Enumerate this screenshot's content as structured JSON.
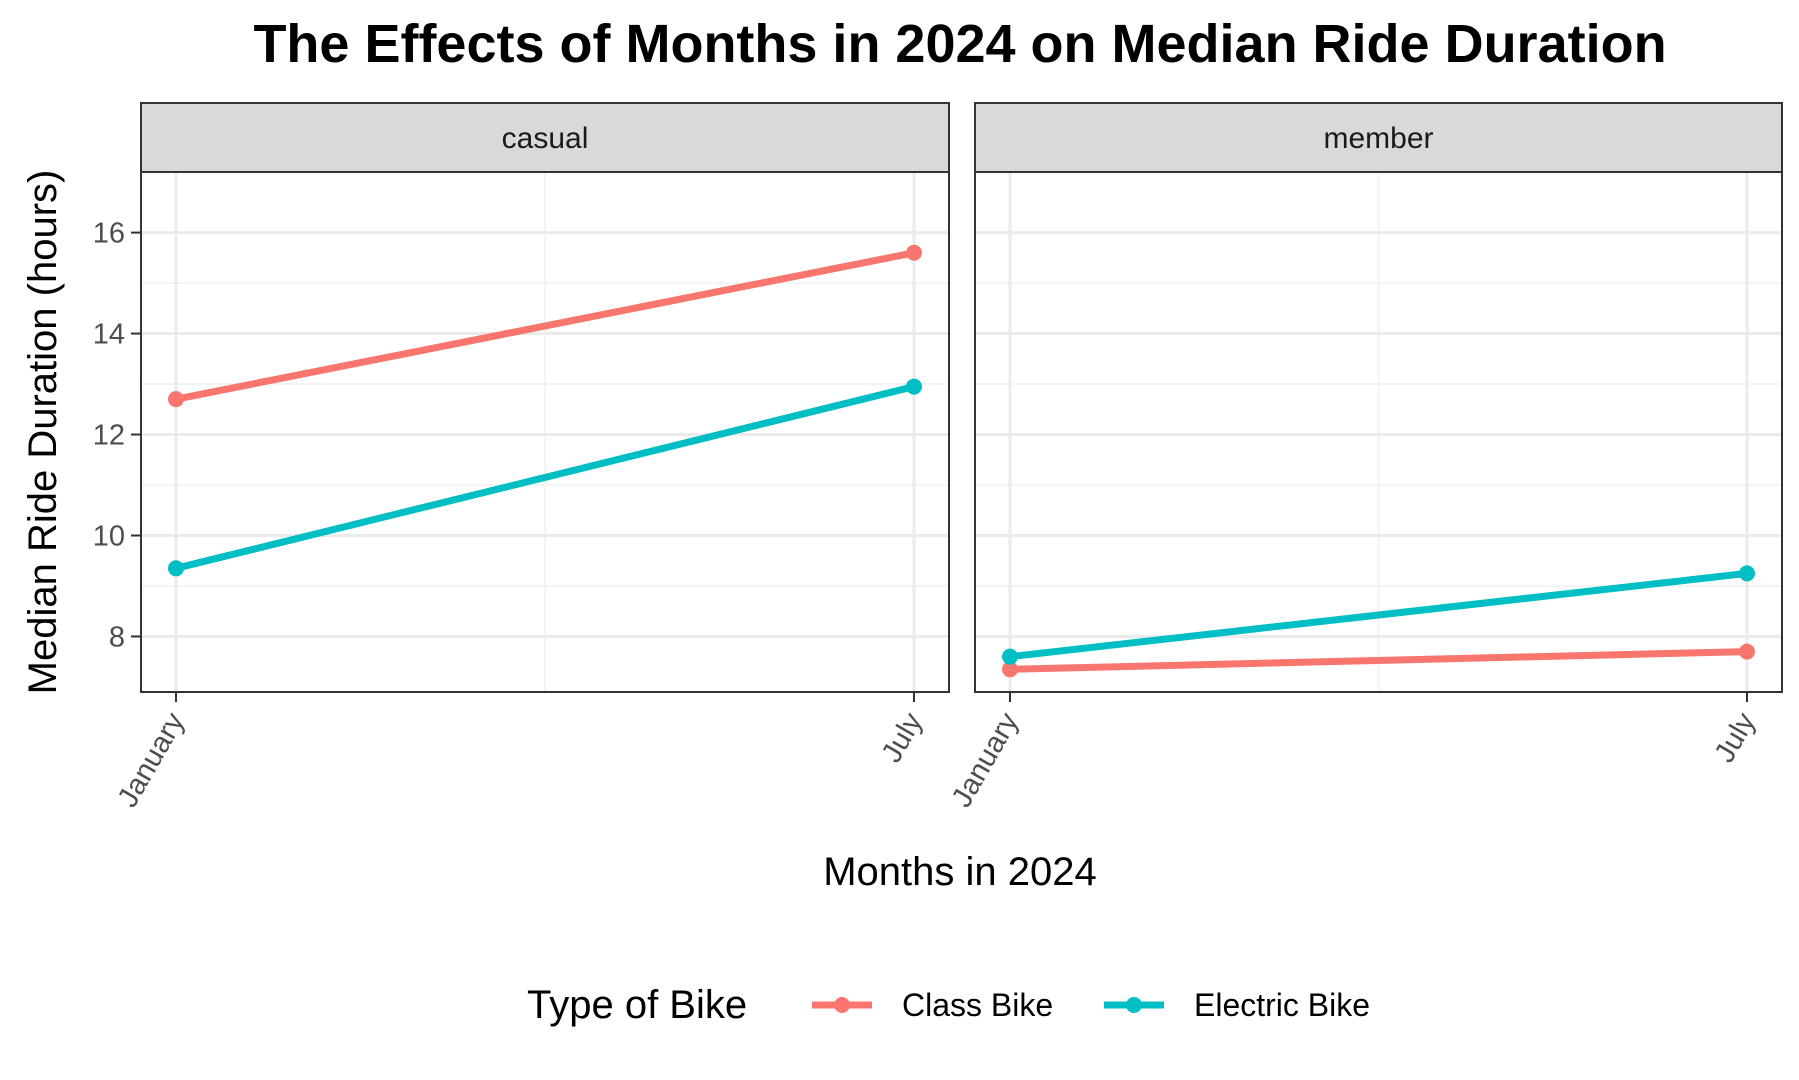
{
  "chart_data": {
    "type": "line",
    "title": "The Effects of Months in 2024 on Median Ride Duration",
    "xlabel": "Months in 2024",
    "ylabel": "Median Ride Duration (hours)",
    "categories": [
      "January",
      "July"
    ],
    "ylim": [
      6.9,
      17.2
    ],
    "yticks": [
      8,
      10,
      12,
      14,
      16
    ],
    "grid": true,
    "legend": {
      "title": "Type of Bike",
      "position": "bottom",
      "items": [
        {
          "name": "Class Bike",
          "color": "#F8766D"
        },
        {
          "name": "Electric Bike",
          "color": "#00BFC4"
        }
      ]
    },
    "facets": [
      {
        "label": "casual",
        "series": [
          {
            "name": "Class Bike",
            "color": "#F8766D",
            "values": [
              12.7,
              15.6
            ]
          },
          {
            "name": "Electric Bike",
            "color": "#00BFC4",
            "values": [
              9.35,
              12.95
            ]
          }
        ]
      },
      {
        "label": "member",
        "series": [
          {
            "name": "Class Bike",
            "color": "#F8766D",
            "values": [
              7.35,
              7.7
            ]
          },
          {
            "name": "Electric Bike",
            "color": "#00BFC4",
            "values": [
              7.6,
              9.25
            ]
          }
        ]
      }
    ]
  }
}
